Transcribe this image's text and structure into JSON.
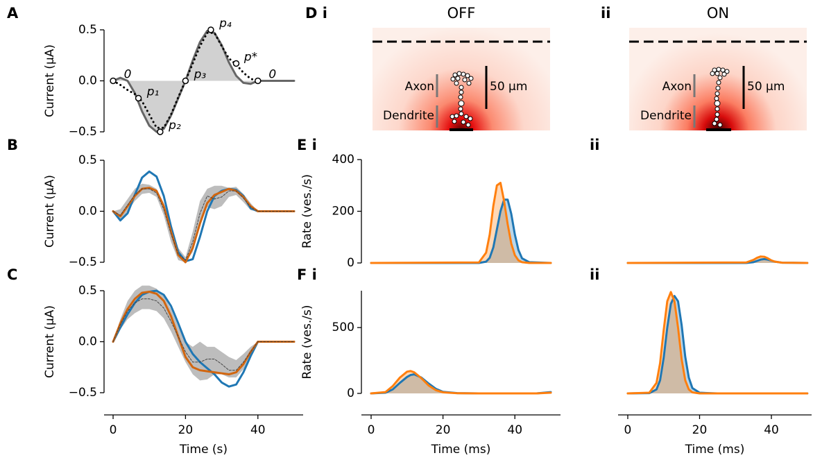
{
  "panels": {
    "A": "A",
    "B": "B",
    "C": "C",
    "D": "D i",
    "D2": "ii",
    "E": "E i",
    "E2": "ii",
    "F": "F i",
    "F2": "ii"
  },
  "images": {
    "off": {
      "title": "OFF",
      "axon": "Axon",
      "dendrite": "Dendrite",
      "scale": "50 μm"
    },
    "on": {
      "title": "ON",
      "axon": "Axon",
      "dendrite": "Dendrite",
      "scale": "50 μm"
    }
  },
  "chart_data": [
    {
      "type": "line",
      "ylabel": "Current (μA)",
      "xlim": [
        -2.5,
        52.5
      ],
      "ylim": [
        -0.5,
        0.5
      ],
      "yticks": [
        {
          "value": -0.5,
          "label": "−0.5"
        },
        {
          "value": 0,
          "label": "0.0"
        },
        0.5
      ],
      "x": [
        0,
        2,
        4,
        6,
        8,
        10,
        12,
        14,
        16,
        18,
        20,
        22,
        24,
        26,
        28,
        30,
        32,
        34,
        36,
        38,
        40,
        50
      ],
      "series": [
        {
          "color": "#666666",
          "style": "solid",
          "linewidth": 3,
          "fill": true,
          "values": [
            0,
            0.03,
            0,
            -0.12,
            -0.3,
            -0.44,
            -0.5,
            -0.47,
            -0.34,
            -0.17,
            0,
            0.2,
            0.38,
            0.49,
            0.47,
            0.35,
            0.18,
            0.05,
            -0.02,
            -0.03,
            0,
            0
          ]
        },
        {
          "color": "#000000",
          "style": "dotted",
          "linewidth": 3,
          "values": [
            0,
            -0.04,
            -0.09,
            -0.13,
            -0.2,
            -0.33,
            -0.46,
            -0.46,
            -0.33,
            -0.16,
            0,
            0.17,
            0.34,
            0.47,
            0.47,
            0.34,
            0.22,
            0.16,
            0.08,
            0.02,
            0,
            null
          ]
        }
      ],
      "points": {
        "x": [
          0,
          7,
          13,
          20,
          27,
          34,
          40
        ],
        "values": [
          0,
          -0.17,
          -0.5,
          0,
          0.5,
          0.17,
          0
        ],
        "labels": [
          "0",
          "p₁",
          "p₂",
          "p₃",
          "p₄",
          "p*",
          "0"
        ]
      }
    },
    {
      "type": "line",
      "ylabel": "Current (μA)",
      "xlim": [
        -2.5,
        52.5
      ],
      "ylim": [
        -0.5,
        0.5
      ],
      "yticks": [
        {
          "value": -0.5,
          "label": "−0.5"
        },
        {
          "value": 0,
          "label": "0.0"
        },
        0.5
      ],
      "x": [
        0,
        2,
        4,
        6,
        8,
        10,
        12,
        14,
        16,
        18,
        20,
        22,
        24,
        26,
        28,
        30,
        32,
        34,
        36,
        38,
        40,
        50
      ],
      "band": {
        "color": "#bdbdbd",
        "upper": [
          0,
          0.02,
          0.12,
          0.22,
          0.27,
          0.26,
          0.22,
          0.08,
          -0.14,
          -0.36,
          -0.45,
          -0.2,
          0.1,
          0.22,
          0.25,
          0.25,
          0.23,
          0.24,
          0.17,
          0.08,
          0,
          0
        ],
        "lower": [
          0,
          -0.1,
          0,
          0.1,
          0.17,
          0.18,
          0.14,
          -0.04,
          -0.3,
          -0.48,
          -0.5,
          -0.4,
          -0.14,
          0.04,
          0.02,
          0.05,
          0.14,
          0.16,
          0.09,
          0.01,
          0,
          0
        ]
      },
      "series": [
        {
          "color": "#1f77b4",
          "style": "solid",
          "linewidth": 3,
          "values": [
            0,
            -0.09,
            -0.02,
            0.16,
            0.33,
            0.39,
            0.34,
            0.15,
            -0.15,
            -0.4,
            -0.49,
            -0.47,
            -0.25,
            0.0,
            0.15,
            0.2,
            0.22,
            0.21,
            0.15,
            0.03,
            0,
            0
          ]
        },
        {
          "color": "#d2660f",
          "style": "solid",
          "linewidth": 3,
          "values": [
            0,
            -0.05,
            0.05,
            0.15,
            0.22,
            0.23,
            0.2,
            0.05,
            -0.2,
            -0.43,
            -0.5,
            -0.36,
            -0.12,
            0.08,
            0.16,
            0.19,
            0.22,
            0.2,
            0.14,
            0.05,
            0,
            0
          ]
        },
        {
          "color": "#444444",
          "style": "dashed",
          "linewidth": 1,
          "values": [
            0,
            -0.04,
            0.06,
            0.16,
            0.22,
            0.22,
            0.18,
            0.02,
            -0.22,
            -0.42,
            -0.48,
            -0.3,
            -0.02,
            0.15,
            0.12,
            0.14,
            0.2,
            0.2,
            0.13,
            0.04,
            0,
            0
          ]
        }
      ]
    },
    {
      "type": "line",
      "ylabel": "Current (μA)",
      "xlabel": "Time (s)",
      "xlim": [
        -2.5,
        52.5
      ],
      "ylim": [
        -0.5,
        0.5
      ],
      "yticks": [
        {
          "value": -0.5,
          "label": "−0.5"
        },
        {
          "value": 0,
          "label": "0.0"
        },
        0.5
      ],
      "xticks": [
        0,
        20,
        40
      ],
      "x": [
        0,
        2,
        4,
        6,
        8,
        10,
        12,
        14,
        16,
        18,
        20,
        22,
        24,
        26,
        28,
        30,
        32,
        34,
        36,
        38,
        40,
        50
      ],
      "band": {
        "color": "#bdbdbd",
        "upper": [
          0,
          0.22,
          0.4,
          0.5,
          0.55,
          0.55,
          0.52,
          0.45,
          0.32,
          0.15,
          0.0,
          -0.05,
          0.0,
          -0.05,
          -0.05,
          -0.1,
          -0.15,
          -0.18,
          -0.12,
          -0.05,
          0,
          0
        ],
        "lower": [
          0,
          0.12,
          0.22,
          0.28,
          0.32,
          0.32,
          0.3,
          0.23,
          0.1,
          -0.05,
          -0.2,
          -0.32,
          -0.38,
          -0.37,
          -0.32,
          -0.32,
          -0.35,
          -0.35,
          -0.27,
          -0.15,
          0,
          0
        ]
      },
      "series": [
        {
          "color": "#1f77b4",
          "style": "solid",
          "linewidth": 3,
          "values": [
            0,
            0.14,
            0.27,
            0.38,
            0.46,
            0.49,
            0.5,
            0.46,
            0.35,
            0.18,
            0.0,
            -0.12,
            -0.2,
            -0.26,
            -0.32,
            -0.4,
            -0.44,
            -0.42,
            -0.3,
            -0.14,
            0,
            0
          ]
        },
        {
          "color": "#d2660f",
          "style": "solid",
          "linewidth": 3,
          "values": [
            0,
            0.18,
            0.32,
            0.42,
            0.48,
            0.49,
            0.47,
            0.4,
            0.25,
            0.05,
            -0.15,
            -0.25,
            -0.28,
            -0.29,
            -0.3,
            -0.31,
            -0.32,
            -0.3,
            -0.22,
            -0.1,
            0,
            0
          ]
        },
        {
          "color": "#444444",
          "style": "dashed",
          "linewidth": 1,
          "values": [
            0,
            0.17,
            0.3,
            0.38,
            0.42,
            0.42,
            0.4,
            0.33,
            0.2,
            0.05,
            -0.1,
            -0.2,
            -0.2,
            -0.17,
            -0.17,
            -0.22,
            -0.28,
            -0.28,
            -0.2,
            -0.1,
            0,
            0
          ]
        }
      ]
    },
    {
      "type": "line",
      "ylabel": "Rate (ves./s)",
      "xlim": [
        -2.7,
        52.7
      ],
      "ylim": [
        0,
        400
      ],
      "yticks": [
        0,
        200,
        400
      ],
      "x": [
        0,
        30,
        32,
        33,
        34,
        35,
        36,
        37,
        38,
        39,
        40,
        41,
        42,
        44,
        50
      ],
      "series": [
        {
          "color": "#1f77b4",
          "style": "solid",
          "linewidth": 3,
          "fill": true,
          "values": [
            0,
            0,
            5,
            20,
            60,
            130,
            200,
            245,
            245,
            190,
            110,
            50,
            18,
            3,
            0
          ]
        },
        {
          "color": "#ff7f0e",
          "style": "solid",
          "linewidth": 3,
          "fill": true,
          "values": [
            0,
            2,
            40,
            110,
            220,
            300,
            310,
            240,
            150,
            75,
            30,
            10,
            3,
            0,
            0
          ]
        }
      ]
    },
    {
      "type": "line",
      "xlim": [
        -2.7,
        51.2
      ],
      "ylim": [
        0,
        400
      ],
      "x": [
        0,
        33,
        35,
        36,
        37,
        38,
        39,
        40,
        41,
        43,
        50
      ],
      "series": [
        {
          "color": "#1f77b4",
          "style": "solid",
          "linewidth": 3,
          "fill": true,
          "values": [
            0,
            0,
            3,
            8,
            13,
            15,
            13,
            9,
            5,
            1,
            0
          ]
        },
        {
          "color": "#ff7f0e",
          "style": "solid",
          "linewidth": 3,
          "fill": true,
          "values": [
            0,
            2,
            12,
            20,
            25,
            24,
            18,
            10,
            5,
            1,
            0
          ]
        }
      ]
    },
    {
      "type": "line",
      "ylabel": "Rate (ves./s)",
      "xlabel": "Time (ms)",
      "xlim": [
        -2.7,
        52.7
      ],
      "ylim": [
        0,
        780
      ],
      "yticks": [
        0,
        500
      ],
      "xticks": [
        0,
        20,
        40
      ],
      "x": [
        0,
        4,
        6,
        8,
        10,
        11,
        12,
        14,
        16,
        18,
        20,
        24,
        30,
        46,
        50
      ],
      "series": [
        {
          "color": "#1f77b4",
          "style": "solid",
          "linewidth": 3,
          "fill": true,
          "values": [
            0,
            5,
            30,
            80,
            125,
            140,
            145,
            120,
            75,
            35,
            12,
            2,
            0,
            0,
            10
          ]
        },
        {
          "color": "#ff7f0e",
          "style": "solid",
          "linewidth": 3,
          "fill": true,
          "values": [
            0,
            10,
            55,
            120,
            165,
            170,
            160,
            115,
            60,
            25,
            8,
            1,
            0,
            0,
            5
          ]
        }
      ]
    },
    {
      "type": "line",
      "xlabel": "Time (ms)",
      "xlim": [
        -2.7,
        51.2
      ],
      "ylim": [
        0,
        780
      ],
      "xticks": [
        0,
        20,
        40
      ],
      "x": [
        0,
        6,
        8,
        9,
        10,
        11,
        12,
        13,
        14,
        15,
        16,
        17,
        18,
        20,
        25,
        50
      ],
      "series": [
        {
          "color": "#1f77b4",
          "style": "solid",
          "linewidth": 3,
          "fill": true,
          "values": [
            0,
            2,
            30,
            100,
            270,
            500,
            680,
            740,
            700,
            520,
            280,
            120,
            40,
            5,
            0,
            0
          ]
        },
        {
          "color": "#ff7f0e",
          "style": "solid",
          "linewidth": 3,
          "fill": true,
          "values": [
            0,
            5,
            80,
            230,
            480,
            700,
            770,
            700,
            500,
            260,
            100,
            30,
            8,
            0,
            0,
            0
          ]
        }
      ]
    }
  ]
}
